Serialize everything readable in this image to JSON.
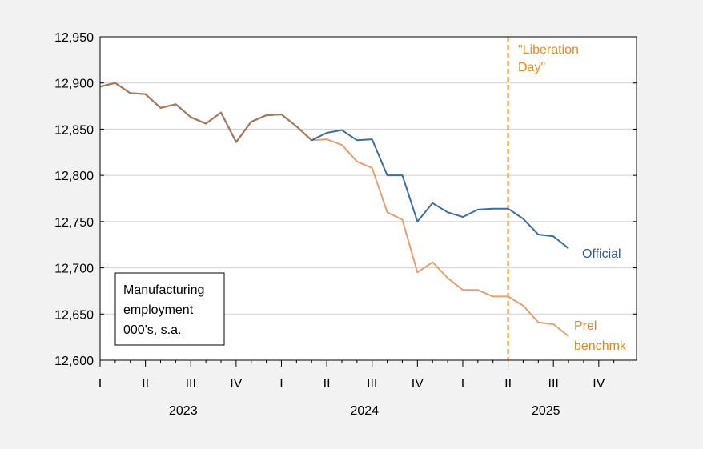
{
  "chart_data": {
    "type": "line",
    "ylim": [
      12600,
      12950
    ],
    "yticks": [
      12600,
      12650,
      12700,
      12750,
      12800,
      12850,
      12900,
      12950
    ],
    "ytick_labels": [
      "12,600",
      "12,650",
      "12,700",
      "12,750",
      "12,800",
      "12,850",
      "12,900",
      "12,950"
    ],
    "x_start": "2023-01",
    "x_end": "2025-12",
    "quarter_labels": [
      "I",
      "II",
      "III",
      "IV",
      "I",
      "II",
      "III",
      "IV",
      "I",
      "II",
      "III",
      "IV"
    ],
    "year_labels": [
      "2023",
      "2024",
      "2025"
    ],
    "grid": true,
    "series": [
      {
        "name": "Official",
        "color": "#3e6d9c",
        "start": "2023-01",
        "values": [
          12896,
          12900,
          12889,
          12888,
          12873,
          12877,
          12863,
          12856,
          12868,
          12836,
          12858,
          12865,
          12866,
          12853,
          12838,
          12846,
          12849,
          12838,
          12839,
          12800,
          12800,
          12750,
          12770,
          12760,
          12755,
          12763,
          12764,
          12764,
          12753,
          12736,
          12734,
          12721
        ]
      },
      {
        "name": "Prel benchmk",
        "color": "#e3a173",
        "start": "2023-01",
        "values": [
          12896,
          12900,
          12889,
          12888,
          12873,
          12877,
          12863,
          12856,
          12868,
          12836,
          12858,
          12865,
          12866,
          12853,
          12838,
          12839,
          12833,
          12815,
          12808,
          12760,
          12752,
          12695,
          12706,
          12689,
          12676,
          12676,
          12669,
          12669,
          12659,
          12641,
          12639,
          12626
        ]
      }
    ],
    "vline": {
      "date": "2025-04",
      "label_lines": [
        "\"Liberation",
        "Day\""
      ],
      "color": "#e8892a"
    },
    "annotations": {
      "official_label": "Official",
      "prel_label_lines": [
        "Prel",
        "benchmk"
      ],
      "official_color": "#2d5b8d",
      "prel_color": "#d48a2c"
    },
    "textbox_lines": [
      "Manufacturing",
      "employment",
      "000's, s.a."
    ]
  }
}
